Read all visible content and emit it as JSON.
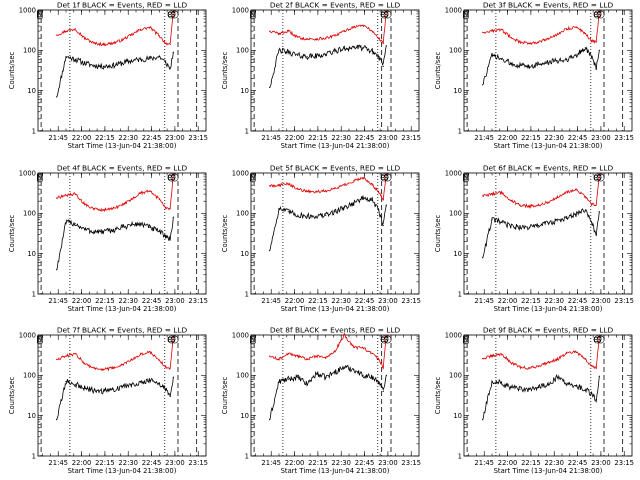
{
  "chart_data": {
    "type": "line",
    "grid": false,
    "shared": {
      "xlabel": "Start Time (13-Jun-04 21:38:00)",
      "ylabel": "Counts/sec",
      "xlim_min": [
        -6,
        102
      ],
      "x_ticks": [
        {
          "label": "21:45",
          "min": 7
        },
        {
          "label": "22:00",
          "min": 22
        },
        {
          "label": "22:15",
          "min": 37
        },
        {
          "label": "22:30",
          "min": 52
        },
        {
          "label": "22:45",
          "min": 67
        },
        {
          "label": "23:00",
          "min": 82
        },
        {
          "label": "23:15",
          "min": 97
        }
      ],
      "ylim": [
        1,
        1000
      ],
      "y_ticks": [
        {
          "label": "1",
          "value": 1
        },
        {
          "label": "10",
          "value": 10
        },
        {
          "label": "100",
          "value": 100
        },
        {
          "label": "1000",
          "value": 1000
        }
      ],
      "series_names": [
        "Events",
        "LLD"
      ],
      "series_colors": {
        "Events": "#000000",
        "LLD": "#e00000"
      },
      "markers": [
        {
          "label": "N",
          "min": -5.3
        },
        {
          "label": "E",
          "min": 78.2
        },
        {
          "label": "S",
          "min": 80.2
        }
      ]
    },
    "panels": [
      {
        "title": "Det 1f BLACK = Events, RED = LLD",
        "x_min": [
          -6,
          0,
          6,
          12,
          18,
          24,
          30,
          36,
          42,
          48,
          54,
          60,
          66,
          72,
          76,
          79,
          81
        ],
        "events": [
          null,
          null,
          7,
          70,
          60,
          48,
          42,
          40,
          42,
          48,
          55,
          60,
          62,
          70,
          50,
          35,
          90
        ],
        "lld": [
          null,
          null,
          240,
          300,
          340,
          200,
          150,
          140,
          150,
          180,
          240,
          330,
          370,
          230,
          150,
          140,
          950
        ],
        "dotted_min": [
          14.5,
          75.5
        ],
        "dashed_min": [
          -4,
          84,
          96
        ]
      },
      {
        "title": "Det 2f BLACK = Events, RED = LLD",
        "x_min": [
          -6,
          0,
          6,
          12,
          18,
          24,
          30,
          36,
          42,
          48,
          54,
          60,
          66,
          72,
          76,
          79,
          81
        ],
        "events": [
          null,
          null,
          12,
          100,
          90,
          75,
          70,
          72,
          80,
          95,
          110,
          120,
          115,
          95,
          70,
          40,
          130
        ],
        "lld": [
          null,
          null,
          300,
          260,
          300,
          210,
          190,
          190,
          200,
          230,
          300,
          380,
          420,
          300,
          200,
          150,
          980
        ],
        "dotted_min": [
          14.5,
          75.5
        ],
        "dashed_min": [
          -4,
          78,
          84
        ]
      },
      {
        "title": "Det 3f BLACK = Events, RED = LLD",
        "x_min": [
          -6,
          0,
          6,
          12,
          18,
          24,
          30,
          36,
          42,
          48,
          54,
          60,
          66,
          72,
          76,
          79,
          81
        ],
        "events": [
          null,
          null,
          14,
          75,
          60,
          48,
          42,
          40,
          45,
          50,
          55,
          60,
          75,
          115,
          70,
          35,
          100
        ],
        "lld": [
          null,
          null,
          280,
          300,
          330,
          210,
          160,
          150,
          160,
          190,
          250,
          340,
          380,
          260,
          170,
          160,
          950
        ],
        "dotted_min": [
          14.5,
          75.5
        ],
        "dashed_min": [
          -4,
          84,
          96
        ]
      },
      {
        "title": "Det 4f BLACK = Events, RED = LLD",
        "x_min": [
          -6,
          0,
          6,
          12,
          18,
          24,
          30,
          36,
          42,
          48,
          54,
          60,
          66,
          72,
          76,
          79,
          81
        ],
        "events": [
          null,
          null,
          4,
          60,
          55,
          40,
          35,
          35,
          38,
          45,
          52,
          55,
          45,
          35,
          28,
          22,
          80
        ],
        "lld": [
          null,
          null,
          240,
          280,
          300,
          170,
          130,
          120,
          130,
          160,
          220,
          320,
          360,
          220,
          140,
          130,
          950
        ],
        "dotted_min": [
          14.5,
          75.5
        ],
        "dashed_min": [
          -4,
          84,
          96
        ]
      },
      {
        "title": "Det 5f BLACK = Events, RED = LLD",
        "x_min": [
          -6,
          0,
          6,
          12,
          18,
          24,
          30,
          36,
          42,
          48,
          54,
          60,
          66,
          72,
          76,
          79,
          81
        ],
        "events": [
          null,
          null,
          12,
          130,
          110,
          90,
          85,
          85,
          90,
          110,
          140,
          180,
          240,
          210,
          120,
          50,
          160
        ],
        "lld": [
          null,
          null,
          480,
          500,
          540,
          400,
          350,
          340,
          360,
          420,
          500,
          640,
          760,
          500,
          350,
          220,
          980
        ],
        "dotted_min": [
          14.5,
          75.5
        ],
        "dashed_min": [
          -4,
          78,
          84
        ]
      },
      {
        "title": "Det 6f BLACK = Events, RED = LLD",
        "x_min": [
          -6,
          0,
          6,
          12,
          18,
          24,
          30,
          36,
          42,
          48,
          54,
          60,
          66,
          72,
          76,
          79,
          81
        ],
        "events": [
          null,
          null,
          8,
          70,
          60,
          48,
          45,
          45,
          50,
          58,
          65,
          75,
          95,
          120,
          60,
          30,
          110
        ],
        "lld": [
          null,
          null,
          270,
          300,
          330,
          210,
          160,
          150,
          160,
          190,
          250,
          340,
          380,
          260,
          170,
          160,
          950
        ],
        "dotted_min": [
          14.5,
          75.5
        ],
        "dashed_min": [
          -4,
          84,
          96
        ]
      },
      {
        "title": "Det 7f BLACK = Events, RED = LLD",
        "x_min": [
          -6,
          0,
          6,
          12,
          18,
          24,
          30,
          36,
          42,
          48,
          54,
          60,
          66,
          72,
          76,
          79,
          81
        ],
        "events": [
          null,
          null,
          8,
          70,
          60,
          48,
          42,
          40,
          45,
          52,
          60,
          68,
          75,
          62,
          45,
          30,
          90
        ],
        "lld": [
          null,
          null,
          250,
          300,
          340,
          200,
          150,
          140,
          150,
          180,
          240,
          330,
          380,
          240,
          160,
          150,
          950
        ],
        "dotted_min": [
          14.5,
          75.5
        ],
        "dashed_min": [
          -4,
          84,
          96
        ]
      },
      {
        "title": "Det 8f BLACK = Events, RED = LLD",
        "x_min": [
          -6,
          0,
          6,
          12,
          18,
          24,
          30,
          36,
          42,
          48,
          54,
          60,
          66,
          72,
          76,
          79,
          81
        ],
        "events": [
          null,
          null,
          8,
          70,
          80,
          90,
          60,
          110,
          90,
          120,
          160,
          140,
          100,
          90,
          70,
          40,
          100
        ],
        "lld": [
          null,
          null,
          300,
          250,
          350,
          300,
          250,
          300,
          280,
          400,
          1000,
          500,
          480,
          350,
          250,
          160,
          980
        ],
        "dotted_min": [
          14.5,
          75.5
        ],
        "dashed_min": [
          -4,
          78,
          84
        ]
      },
      {
        "title": "Det 9f BLACK = Events, RED = LLD",
        "x_min": [
          -6,
          0,
          6,
          12,
          18,
          24,
          30,
          36,
          42,
          48,
          54,
          60,
          66,
          72,
          76,
          79,
          81
        ],
        "events": [
          null,
          null,
          8,
          70,
          65,
          50,
          45,
          45,
          50,
          58,
          90,
          60,
          55,
          45,
          35,
          25,
          95
        ],
        "lld": [
          null,
          null,
          260,
          300,
          340,
          210,
          160,
          150,
          170,
          210,
          250,
          350,
          380,
          250,
          170,
          150,
          950
        ],
        "dotted_min": [
          14.5,
          75.5
        ],
        "dashed_min": [
          -4,
          84,
          96
        ]
      }
    ]
  }
}
